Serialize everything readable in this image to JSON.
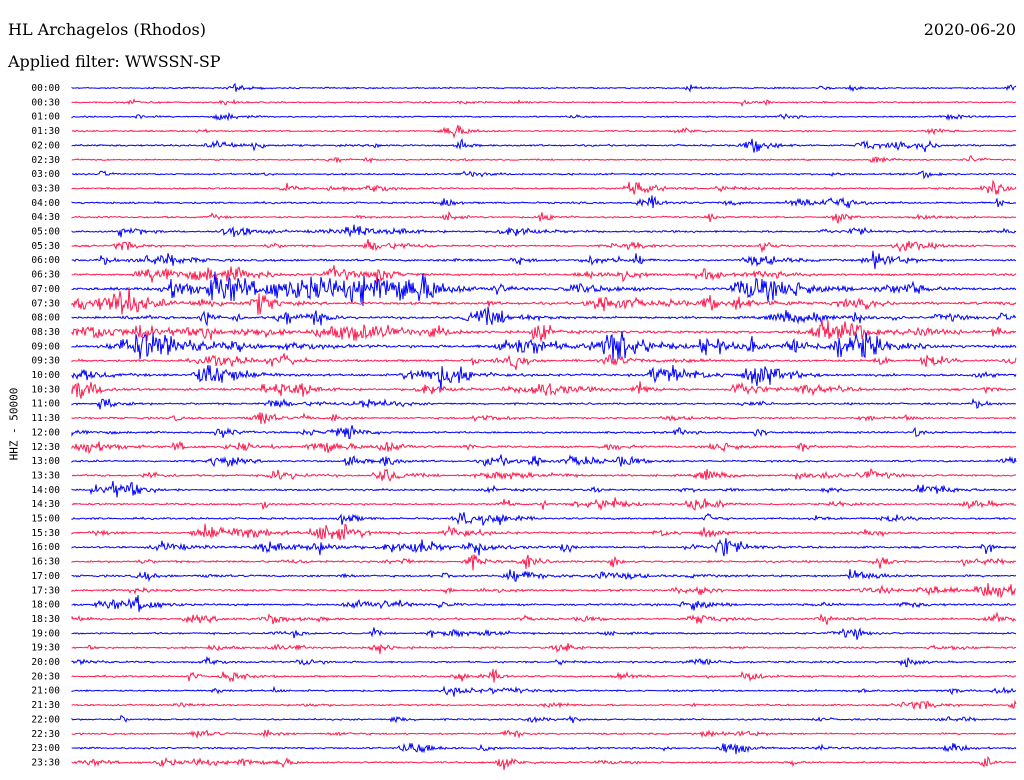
{
  "header": {
    "station": "HL Archagelos (Rhodos)",
    "date": "2020-06-20",
    "filter": "Applied filter: WWSSN-SP"
  },
  "chart_data": {
    "type": "line",
    "ylabel": "HHZ - 50000",
    "row_labels": [
      "00:00",
      "00:30",
      "01:00",
      "01:30",
      "02:00",
      "02:30",
      "03:00",
      "03:30",
      "04:00",
      "04:30",
      "05:00",
      "05:30",
      "06:00",
      "06:30",
      "07:00",
      "07:30",
      "08:00",
      "08:30",
      "09:00",
      "09:30",
      "10:00",
      "10:30",
      "11:00",
      "11:30",
      "12:00",
      "12:30",
      "13:00",
      "13:30",
      "14:00",
      "14:30",
      "15:00",
      "15:30",
      "16:00",
      "16:30",
      "17:00",
      "17:30",
      "18:00",
      "18:30",
      "19:00",
      "19:30",
      "20:00",
      "20:30",
      "21:00",
      "21:30",
      "22:00",
      "22:30",
      "23:00",
      "23:30"
    ],
    "trace_colors": [
      "#0000ff",
      "#ff1a4d"
    ],
    "row_activity": [
      0.12,
      0.18,
      0.12,
      0.15,
      0.35,
      0.12,
      0.22,
      0.3,
      0.35,
      0.3,
      0.4,
      0.35,
      0.45,
      0.5,
      0.9,
      0.75,
      0.6,
      0.85,
      0.9,
      0.55,
      0.6,
      0.6,
      0.35,
      0.35,
      0.4,
      0.45,
      0.4,
      0.45,
      0.4,
      0.4,
      0.4,
      0.4,
      0.45,
      0.45,
      0.45,
      0.4,
      0.45,
      0.45,
      0.35,
      0.35,
      0.3,
      0.3,
      0.3,
      0.25,
      0.25,
      0.25,
      0.3,
      0.35
    ]
  }
}
